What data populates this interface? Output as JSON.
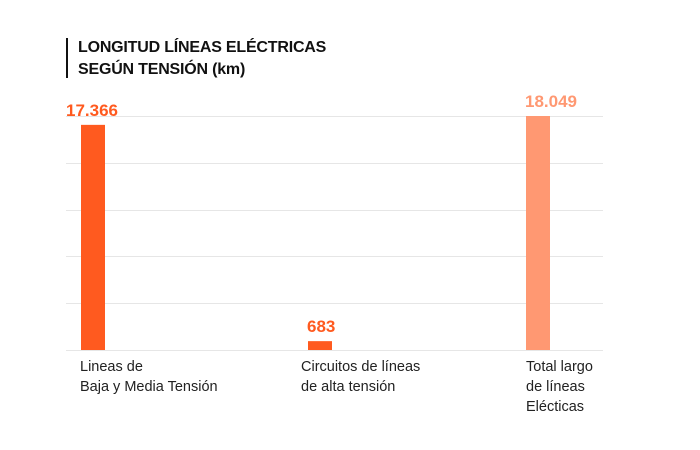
{
  "header": {
    "title_line1": "LONGITUD LÍNEAS ELÉCTRICAS",
    "title_line2": "SEGÚN TENSIÓN (km)"
  },
  "chart_data": {
    "type": "bar",
    "title": "LONGITUD LÍNEAS ELÉCTRICAS SEGÚN TENSIÓN (km)",
    "categories": [
      "Lineas de\nBaja y Media Tensión",
      "Circuitos de líneas\nde alta tensión",
      "Total largo\nde líneas\nElécticas"
    ],
    "values": [
      17366,
      683,
      18049
    ],
    "value_labels": [
      "17.366",
      "683",
      "18.049"
    ],
    "bar_colors": [
      "#ff5a1f",
      "#ff5a1f",
      "#ff9872"
    ],
    "label_colors": [
      "#ff5a1f",
      "#ff5a1f",
      "#ff9872"
    ],
    "xlabel": "",
    "ylabel": "",
    "ylim": [
      0,
      18049
    ],
    "grid": true,
    "grid_values": [
      0,
      3610,
      7220,
      10829,
      14439,
      18049
    ],
    "grid_color": "#e6e6e6",
    "legend": "none"
  }
}
